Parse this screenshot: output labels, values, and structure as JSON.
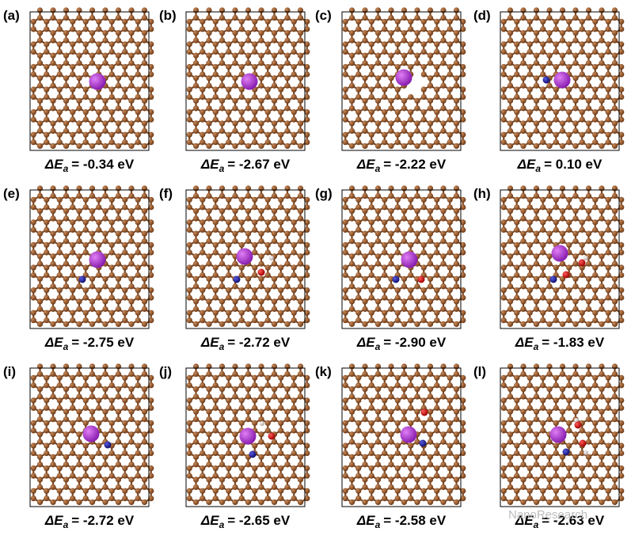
{
  "panels": [
    {
      "label": "(a)",
      "quantity": "ΔE",
      "subscript": "a",
      "value": "= -0.34 eV"
    },
    {
      "label": "(b)",
      "quantity": "ΔE",
      "subscript": "a",
      "value": "= -2.67 eV"
    },
    {
      "label": "(c)",
      "quantity": "ΔE",
      "subscript": "a",
      "value": "= -2.22 eV"
    },
    {
      "label": "(d)",
      "quantity": "ΔE",
      "subscript": "a",
      "value": "= 0.10 eV"
    },
    {
      "label": "(e)",
      "quantity": "ΔE",
      "subscript": "a",
      "value": "= -2.75 eV"
    },
    {
      "label": "(f)",
      "quantity": "ΔE",
      "subscript": "a",
      "value": "= -2.72 eV"
    },
    {
      "label": "(g)",
      "quantity": "ΔE",
      "subscript": "a",
      "value": "= -2.90 eV"
    },
    {
      "label": "(h)",
      "quantity": "ΔE",
      "subscript": "a",
      "value": "= -1.83 eV"
    },
    {
      "label": "(i)",
      "quantity": "ΔE",
      "subscript": "a",
      "value": "= -2.72 eV"
    },
    {
      "label": "(j)",
      "quantity": "ΔE",
      "subscript": "a",
      "value": "= -2.65 eV"
    },
    {
      "label": "(k)",
      "quantity": "ΔE",
      "subscript": "a",
      "value": "= -2.58 eV"
    },
    {
      "label": "(l)",
      "quantity": "ΔE",
      "subscript": "a",
      "value": "= -2.63 eV"
    }
  ],
  "watermark": "NanoResearch"
}
